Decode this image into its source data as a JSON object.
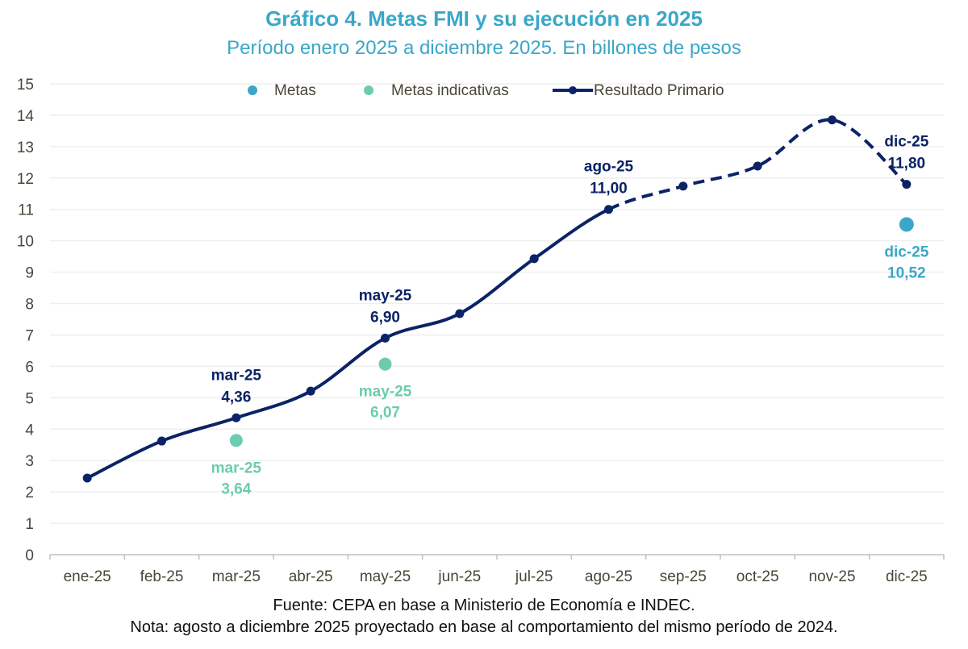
{
  "chart_data": {
    "type": "line",
    "title": "Gráfico 4. Metas FMI y su ejecución en 2025",
    "subtitle": "Período enero 2025 a diciembre 2025. En billones de pesos",
    "xlabel": "",
    "ylabel": "",
    "ylim": [
      0,
      15
    ],
    "yticks": [
      "0",
      "1",
      "2",
      "3",
      "4",
      "5",
      "6",
      "7",
      "8",
      "9",
      "10",
      "11",
      "12",
      "13",
      "14",
      "15"
    ],
    "grid": true,
    "legend_position": "top",
    "categories": [
      "ene-25",
      "feb-25",
      "mar-25",
      "abr-25",
      "may-25",
      "jun-25",
      "jul-25",
      "ago-25",
      "sep-25",
      "oct-25",
      "nov-25",
      "dic-25"
    ],
    "series": [
      {
        "name": "Resultado Primario",
        "kind": "line",
        "color": "#0B2366",
        "values": [
          2.44,
          3.62,
          4.36,
          5.21,
          6.9,
          7.68,
          9.43,
          11.0,
          11.74,
          12.38,
          13.85,
          11.8
        ],
        "projected_from_index": 7,
        "labels": [
          {
            "index": 2,
            "category": "mar-25",
            "value": "4,36"
          },
          {
            "index": 4,
            "category": "may-25",
            "value": "6,90"
          },
          {
            "index": 7,
            "category": "ago-25",
            "value": "11,00"
          },
          {
            "index": 11,
            "category": "dic-25",
            "value": "11,80"
          }
        ]
      },
      {
        "name": "Metas",
        "kind": "scatter",
        "color": "#3AA7C8",
        "points": [
          {
            "index": 11,
            "category": "dic-25",
            "value": 10.52,
            "label": "10,52"
          }
        ]
      },
      {
        "name": "Metas indicativas",
        "kind": "scatter",
        "color": "#6DCBB0",
        "points": [
          {
            "index": 2,
            "category": "mar-25",
            "value": 3.64,
            "label": "3,64"
          },
          {
            "index": 4,
            "category": "may-25",
            "value": 6.07,
            "label": "6,07"
          }
        ]
      }
    ],
    "legend": [
      {
        "name": "Metas",
        "symbol": "dot",
        "color": "#3AA7C8"
      },
      {
        "name": "Metas indicativas",
        "symbol": "dot",
        "color": "#6DCBB0"
      },
      {
        "name": "Resultado Primario",
        "symbol": "line-marker",
        "color": "#0B2366"
      }
    ]
  },
  "footer": {
    "source": "Fuente: CEPA en base a Ministerio de Economía e INDEC.",
    "note": "Nota: agosto a diciembre 2025 proyectado en base al comportamiento del mismo período de 2024."
  }
}
